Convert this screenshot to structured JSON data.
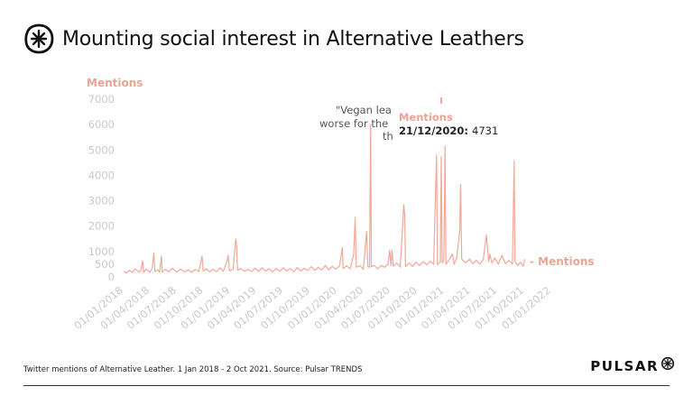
{
  "header": {
    "title": "Mounting social interest in Alternative Leathers",
    "logo_icon": "pulsar-asterisk-icon"
  },
  "footer": {
    "note": "Twitter mentions of Alternative Leather. 1 Jan 2018 - 2 Oct 2021. Source: Pulsar TRENDS",
    "brand": "PULSAR",
    "brand_icon": "pulsar-asterisk-icon"
  },
  "colors": {
    "series": "#f0a898",
    "axis_text": "#c9c9c9",
    "label_accent": "#eaa594",
    "title": "#111111"
  },
  "chart_data": {
    "type": "line",
    "ylabel": "Mentions",
    "series_label": "- Mentions",
    "ylim": [
      0,
      7000
    ],
    "yticks": [
      0,
      500,
      1000,
      2000,
      3000,
      4000,
      5000,
      6000,
      7000
    ],
    "xlim": [
      "2018-01-01",
      "2022-01-01"
    ],
    "xtick_labels": [
      "01/01/2018",
      "01/04/2018",
      "01/07/2018",
      "01/10/2018",
      "01/01/2019",
      "01/04/2019",
      "01/07/2019",
      "01/10/2019",
      "01/01/2020",
      "01/04/2020",
      "01/07/2020",
      "01/10/2020",
      "01/01/2021",
      "01/04/2021",
      "01/07/2021",
      "01/10/2021",
      "01/01/2022"
    ],
    "series": [
      {
        "values": [
          [
            "2018-01-01",
            200
          ],
          [
            "2018-01-12",
            160
          ],
          [
            "2018-01-20",
            260
          ],
          [
            "2018-02-01",
            180
          ],
          [
            "2018-02-10",
            320
          ],
          [
            "2018-02-22",
            190
          ],
          [
            "2018-03-01",
            250
          ],
          [
            "2018-03-07",
            640
          ],
          [
            "2018-03-10",
            180
          ],
          [
            "2018-03-20",
            300
          ],
          [
            "2018-04-01",
            180
          ],
          [
            "2018-04-09",
            350
          ],
          [
            "2018-04-14",
            950
          ],
          [
            "2018-04-18",
            210
          ],
          [
            "2018-04-28",
            280
          ],
          [
            "2018-05-04",
            180
          ],
          [
            "2018-05-10",
            820
          ],
          [
            "2018-05-13",
            190
          ],
          [
            "2018-05-24",
            300
          ],
          [
            "2018-06-04",
            200
          ],
          [
            "2018-06-16",
            340
          ],
          [
            "2018-07-01",
            190
          ],
          [
            "2018-07-14",
            310
          ],
          [
            "2018-07-28",
            200
          ],
          [
            "2018-08-10",
            280
          ],
          [
            "2018-08-22",
            180
          ],
          [
            "2018-09-03",
            300
          ],
          [
            "2018-09-15",
            210
          ],
          [
            "2018-09-26",
            820
          ],
          [
            "2018-09-30",
            230
          ],
          [
            "2018-10-10",
            320
          ],
          [
            "2018-10-22",
            200
          ],
          [
            "2018-11-03",
            300
          ],
          [
            "2018-11-15",
            210
          ],
          [
            "2018-11-27",
            360
          ],
          [
            "2018-12-08",
            220
          ],
          [
            "2018-12-20",
            620
          ],
          [
            "2018-12-24",
            850
          ],
          [
            "2018-12-29",
            240
          ],
          [
            "2019-01-10",
            300
          ],
          [
            "2019-01-19",
            1500
          ],
          [
            "2019-01-22",
            1250
          ],
          [
            "2019-01-25",
            260
          ],
          [
            "2019-02-06",
            320
          ],
          [
            "2019-02-18",
            220
          ],
          [
            "2019-03-02",
            300
          ],
          [
            "2019-03-14",
            210
          ],
          [
            "2019-03-26",
            340
          ],
          [
            "2019-04-07",
            220
          ],
          [
            "2019-04-19",
            360
          ],
          [
            "2019-05-01",
            230
          ],
          [
            "2019-05-13",
            320
          ],
          [
            "2019-05-25",
            200
          ],
          [
            "2019-06-06",
            330
          ],
          [
            "2019-06-18",
            220
          ],
          [
            "2019-06-30",
            360
          ],
          [
            "2019-07-12",
            230
          ],
          [
            "2019-07-24",
            330
          ],
          [
            "2019-08-05",
            210
          ],
          [
            "2019-08-17",
            370
          ],
          [
            "2019-08-29",
            230
          ],
          [
            "2019-09-10",
            340
          ],
          [
            "2019-09-22",
            250
          ],
          [
            "2019-10-04",
            400
          ],
          [
            "2019-10-16",
            260
          ],
          [
            "2019-10-28",
            380
          ],
          [
            "2019-11-09",
            270
          ],
          [
            "2019-11-21",
            450
          ],
          [
            "2019-12-03",
            280
          ],
          [
            "2019-12-15",
            420
          ],
          [
            "2019-12-27",
            300
          ],
          [
            "2020-01-08",
            420
          ],
          [
            "2020-01-18",
            1150
          ],
          [
            "2020-01-21",
            330
          ],
          [
            "2020-02-02",
            440
          ],
          [
            "2020-02-14",
            320
          ],
          [
            "2020-02-26",
            900
          ],
          [
            "2020-03-02",
            2350
          ],
          [
            "2020-03-06",
            380
          ],
          [
            "2020-03-18",
            440
          ],
          [
            "2020-03-30",
            300
          ],
          [
            "2020-04-10",
            1800
          ],
          [
            "2020-04-14",
            420
          ],
          [
            "2020-04-20",
            380
          ],
          [
            "2020-04-24",
            6000
          ],
          [
            "2020-04-26",
            400
          ],
          [
            "2020-05-06",
            450
          ],
          [
            "2020-05-18",
            320
          ],
          [
            "2020-05-30",
            450
          ],
          [
            "2020-06-10",
            380
          ],
          [
            "2020-06-22",
            500
          ],
          [
            "2020-06-28",
            1050
          ],
          [
            "2020-07-02",
            450
          ],
          [
            "2020-07-06",
            1050
          ],
          [
            "2020-07-10",
            420
          ],
          [
            "2020-07-22",
            550
          ],
          [
            "2020-08-03",
            380
          ],
          [
            "2020-08-15",
            2850
          ],
          [
            "2020-08-18",
            2450
          ],
          [
            "2020-08-21",
            400
          ],
          [
            "2020-09-02",
            550
          ],
          [
            "2020-09-14",
            420
          ],
          [
            "2020-09-26",
            580
          ],
          [
            "2020-10-08",
            450
          ],
          [
            "2020-10-20",
            600
          ],
          [
            "2020-11-01",
            480
          ],
          [
            "2020-11-13",
            620
          ],
          [
            "2020-11-25",
            500
          ],
          [
            "2020-12-05",
            4800
          ],
          [
            "2020-12-08",
            480
          ],
          [
            "2020-12-18",
            600
          ],
          [
            "2020-12-21",
            4731
          ],
          [
            "2020-12-24",
            550
          ],
          [
            "2020-12-30",
            650
          ],
          [
            "2021-01-03",
            5150
          ],
          [
            "2021-01-06",
            500
          ],
          [
            "2021-01-18",
            700
          ],
          [
            "2021-01-28",
            900
          ],
          [
            "2021-02-03",
            500
          ],
          [
            "2021-02-12",
            750
          ],
          [
            "2021-02-22",
            1800
          ],
          [
            "2021-02-25",
            3650
          ],
          [
            "2021-03-01",
            700
          ],
          [
            "2021-03-15",
            550
          ],
          [
            "2021-03-27",
            700
          ],
          [
            "2021-04-08",
            520
          ],
          [
            "2021-04-20",
            650
          ],
          [
            "2021-05-02",
            500
          ],
          [
            "2021-05-14",
            700
          ],
          [
            "2021-05-24",
            1650
          ],
          [
            "2021-05-28",
            1100
          ],
          [
            "2021-06-01",
            600
          ],
          [
            "2021-06-05",
            900
          ],
          [
            "2021-06-12",
            550
          ],
          [
            "2021-06-22",
            750
          ],
          [
            "2021-07-04",
            500
          ],
          [
            "2021-07-16",
            850
          ],
          [
            "2021-07-28",
            520
          ],
          [
            "2021-08-09",
            650
          ],
          [
            "2021-08-21",
            500
          ],
          [
            "2021-08-27",
            4550
          ],
          [
            "2021-08-30",
            600
          ],
          [
            "2021-09-08",
            450
          ],
          [
            "2021-09-18",
            580
          ],
          [
            "2021-09-27",
            420
          ],
          [
            "2021-10-02",
            700
          ]
        ]
      }
    ],
    "annotation": {
      "text": [
        "\"Vegan lea",
        "worse for the",
        "th"
      ]
    },
    "tooltip": {
      "label": "Mentions",
      "date": "21/12/2020",
      "value": "4731",
      "x": "2020-12-21"
    }
  }
}
